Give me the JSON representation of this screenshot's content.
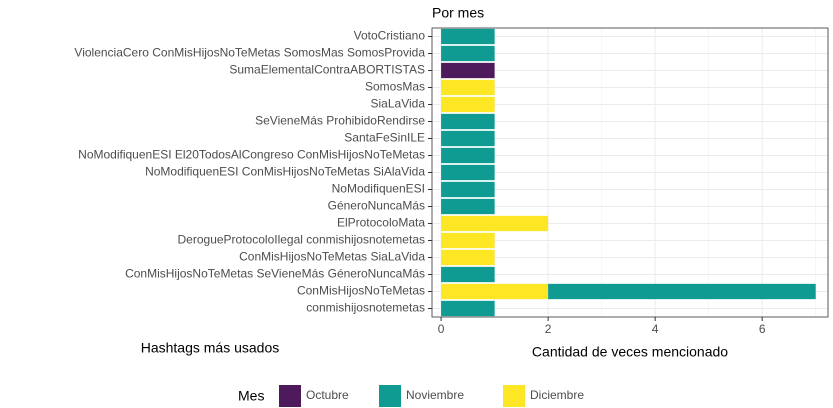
{
  "chart_data": {
    "type": "bar",
    "orientation": "horizontal",
    "stacked": true,
    "title": "Por mes",
    "x_label": "Cantidad de veces mencionado",
    "y_label": "Hashtags más usados",
    "legend_title": "Mes",
    "legend": "bottom",
    "grid": true,
    "categories": [
      "VotoCristiano",
      "ViolenciaCero ConMisHijosNoTeMetas SomosMas SomosProvida",
      "SumaElementalContraABORTISTAS",
      "SomosMas",
      "SiaLaVida",
      "SeVieneMás ProhibidoRendirse",
      "SantaFeSinILE",
      "NoModifiquenESI El20TodosAlCongreso ConMisHijosNoTeMetas",
      "NoModifiquenESI ConMisHijosNoTeMetas SiAlaVida",
      "NoModifiquenESI",
      "GéneroNuncaMás",
      "ElProtocoloMata",
      "DerogueProtocoloIlegal conmishijosnotemetas",
      "ConMisHijosNoTeMetas SiaLaVida",
      "ConMisHijosNoTeMetas SeVieneMás GéneroNuncaMás",
      "ConMisHijosNoTeMetas",
      "conmishijosnotemetas"
    ],
    "series": [
      {
        "name": "Octubre",
        "color": "#4f1a5c",
        "values": [
          null,
          null,
          1,
          null,
          null,
          null,
          null,
          null,
          null,
          null,
          null,
          null,
          null,
          null,
          null,
          null,
          null
        ]
      },
      {
        "name": "Noviembre",
        "color": "#0f9b92",
        "values": [
          1,
          1,
          null,
          null,
          null,
          1,
          1,
          1,
          1,
          1,
          1,
          null,
          null,
          null,
          1,
          5,
          1
        ]
      },
      {
        "name": "Diciembre",
        "color": "#fde725",
        "values": [
          null,
          null,
          null,
          1,
          1,
          null,
          null,
          null,
          null,
          null,
          null,
          2,
          1,
          1,
          null,
          2,
          null
        ]
      }
    ],
    "xlim": [
      -0.17,
      7.23
    ],
    "xticks": [
      0,
      2,
      4,
      6
    ]
  }
}
